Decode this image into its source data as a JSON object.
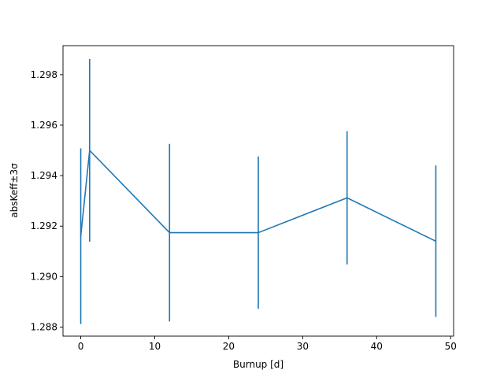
{
  "chart_data": {
    "type": "line",
    "title": "",
    "xlabel": "Burnup [d]",
    "ylabel": "absKeff±3σ",
    "xlim": [
      -2.4,
      50.4
    ],
    "ylim": [
      1.28764,
      1.29915
    ],
    "xticks": [
      0,
      10,
      20,
      30,
      40,
      50
    ],
    "xtick_labels": [
      "0",
      "10",
      "20",
      "30",
      "40",
      "50"
    ],
    "yticks": [
      1.288,
      1.29,
      1.292,
      1.294,
      1.296,
      1.298
    ],
    "ytick_labels": [
      "1.288",
      "1.290",
      "1.292",
      "1.294",
      "1.296",
      "1.298"
    ],
    "grid": false,
    "legend": "none",
    "series": [
      {
        "color": "#1f77b4",
        "x": [
          0,
          1.2,
          12,
          24,
          36,
          48
        ],
        "y": [
          1.2916,
          1.295,
          1.29174,
          1.29174,
          1.29312,
          1.2914
        ],
        "err": [
          0.00348,
          0.00362,
          0.00352,
          0.00302,
          0.00264,
          0.003
        ]
      }
    ]
  }
}
